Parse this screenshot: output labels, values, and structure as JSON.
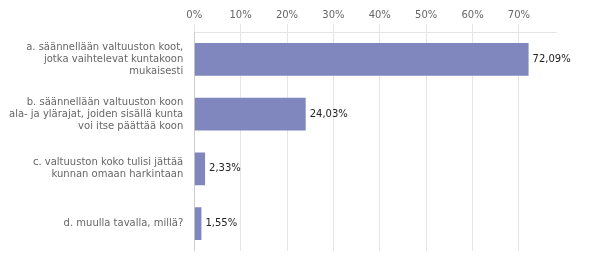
{
  "chart_data": {
    "type": "bar",
    "orientation": "horizontal",
    "categories": [
      "d. muulla tavalla, millä?",
      "c. valtuuston koko tulisi jättää\nkunnan omaan harkintaan",
      "b. säännellään valtuuston koon\nala- ja ylärajat, joiden sisällä kunta\nvoi itse päättää koon",
      "a. säännellään valtuuston koot,\njotka vaihtelevat kuntakoon\nmukaisesti"
    ],
    "values": [
      1.55,
      2.33,
      24.03,
      72.09
    ],
    "value_labels": [
      "1,55%",
      "2,33%",
      "24,03%",
      "72,09%"
    ],
    "data_labels": true,
    "color": "#8087bf",
    "xlim": [
      0,
      78
    ],
    "xticks": [
      {
        "value": 0,
        "label": "0%"
      },
      {
        "value": 10,
        "label": "10%"
      },
      {
        "value": 20,
        "label": "20%"
      },
      {
        "value": 30,
        "label": "30%"
      },
      {
        "value": 40,
        "label": "40%"
      },
      {
        "value": 50,
        "label": "50%"
      },
      {
        "value": 60,
        "label": "60%"
      },
      {
        "value": 70,
        "label": "70%"
      }
    ],
    "grid": true
  }
}
